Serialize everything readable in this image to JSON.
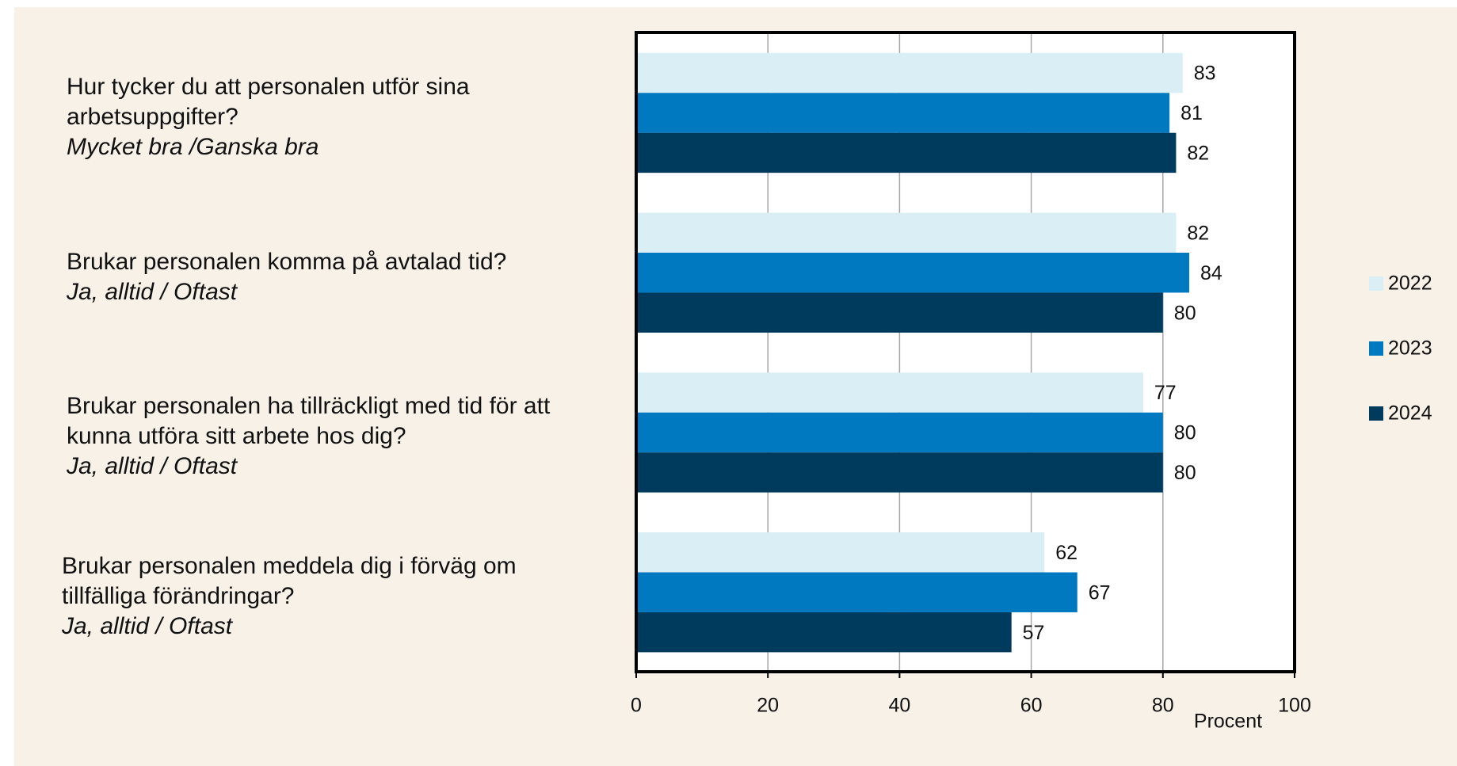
{
  "chart_data": {
    "type": "bar",
    "orientation": "horizontal",
    "categories": [
      "Hur tycker du att personalen utför sina arbetsuppgifter?",
      "Brukar personalen komma på avtalad tid?",
      "Brukar personalen ha tillräckligt med tid för att kunna utföra sitt arbete hos dig?",
      "Brukar personalen meddela dig i förväg om tillfälliga förändringar?"
    ],
    "category_notes": [
      "Mycket bra /Ganska bra",
      "Ja, alltid / Oftast",
      "Ja, alltid / Oftast",
      "Ja, alltid / Oftast"
    ],
    "series": [
      {
        "name": "2022",
        "color": "#daeef5",
        "values": [
          83,
          82,
          77,
          62
        ]
      },
      {
        "name": "2023",
        "color": "#0079c1",
        "values": [
          81,
          84,
          80,
          67
        ]
      },
      {
        "name": "2024",
        "color": "#003a5d",
        "values": [
          82,
          80,
          80,
          57
        ]
      }
    ],
    "x_label": "Procent",
    "xlim": [
      0,
      100
    ],
    "xticks": [
      0,
      20,
      40,
      60,
      80,
      100
    ],
    "grid": true,
    "legend": "right"
  }
}
